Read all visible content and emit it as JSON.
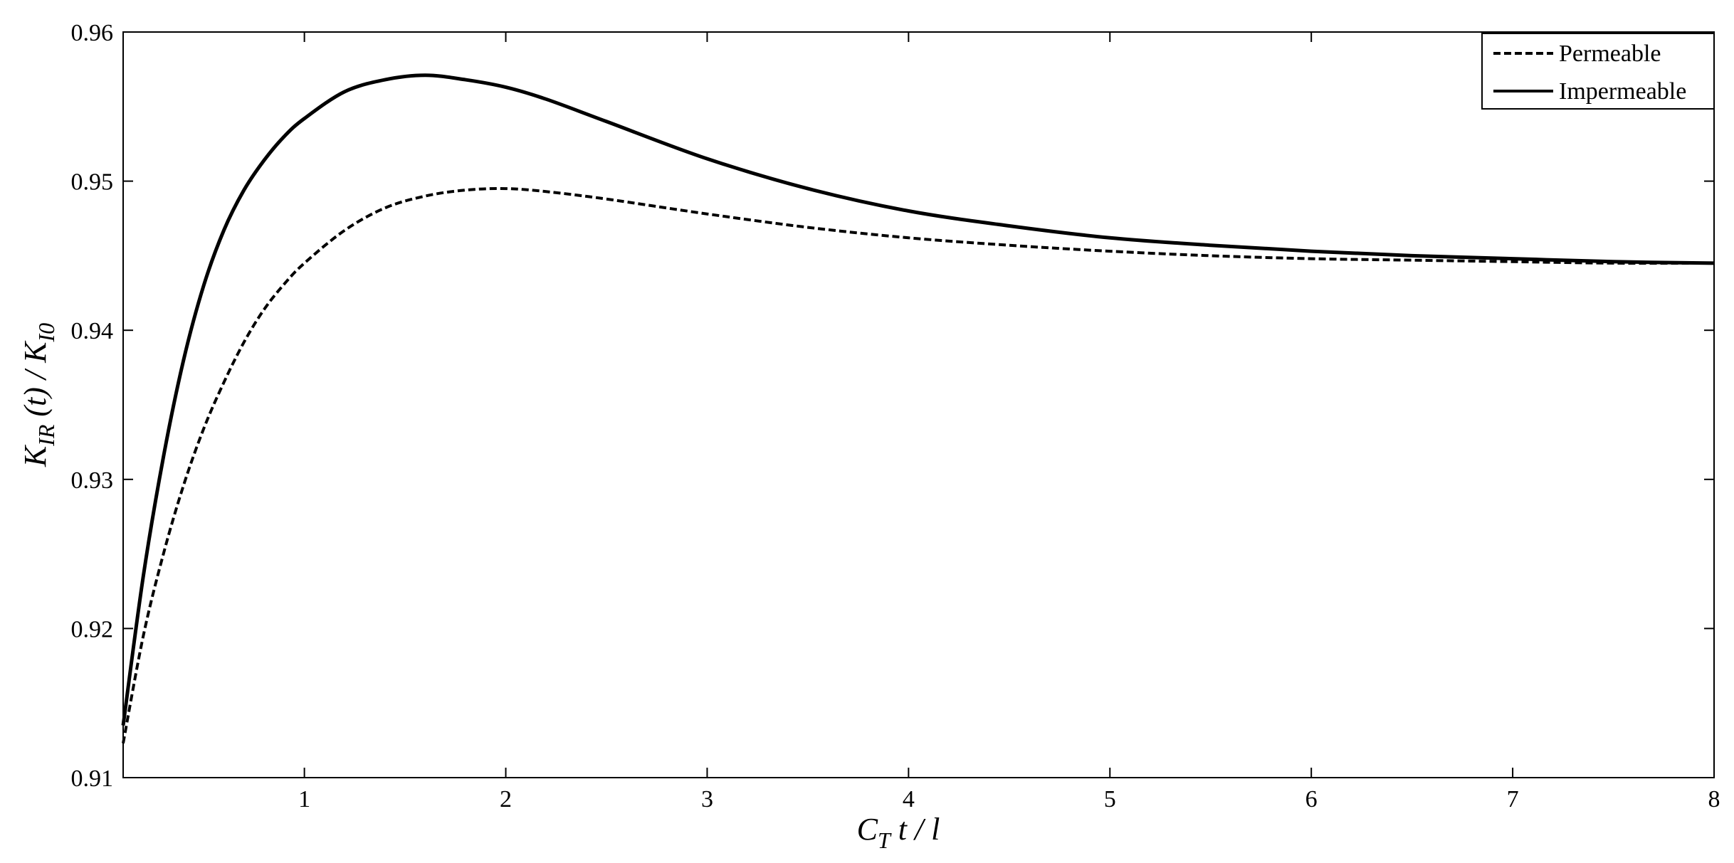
{
  "chart_data": {
    "type": "line",
    "title": "",
    "xlabel": {
      "main": "C",
      "sub": "T",
      "rest": " t / l"
    },
    "ylabel": {
      "k1": "K",
      "k1_sub": "IR",
      "mid": " (t) / ",
      "k2": "K",
      "k2_sub": "I0"
    },
    "xlim": [
      0.1,
      8
    ],
    "ylim": [
      0.91,
      0.96
    ],
    "xticks": [
      1,
      2,
      3,
      4,
      5,
      6,
      7,
      8
    ],
    "xtick_labels": [
      "1",
      "2",
      "3",
      "4",
      "5",
      "6",
      "7",
      "8"
    ],
    "yticks": [
      0.91,
      0.92,
      0.93,
      0.94,
      0.95,
      0.96
    ],
    "ytick_labels": [
      "0.91",
      "0.92",
      "0.93",
      "0.94",
      "0.95",
      "0.96"
    ],
    "grid": false,
    "legend_position": "top-right",
    "colors": {
      "line": "#000000",
      "axis": "#000000"
    },
    "series": [
      {
        "name": "Permeable",
        "style": "dashed",
        "x": [
          0.1,
          0.2,
          0.3,
          0.4,
          0.5,
          0.6,
          0.7,
          0.8,
          0.9,
          1.0,
          1.2,
          1.4,
          1.6,
          1.8,
          2.0,
          2.2,
          2.5,
          3.0,
          3.5,
          4.0,
          4.5,
          5.0,
          5.5,
          6.0,
          6.5,
          7.0,
          7.5,
          8.0
        ],
        "y": [
          0.9123,
          0.9195,
          0.925,
          0.9296,
          0.9334,
          0.9365,
          0.9392,
          0.9414,
          0.9431,
          0.9445,
          0.9467,
          0.9482,
          0.949,
          0.9494,
          0.9495,
          0.9493,
          0.9488,
          0.9478,
          0.9469,
          0.9462,
          0.9457,
          0.9453,
          0.945,
          0.9448,
          0.9447,
          0.9446,
          0.9445,
          0.9445
        ]
      },
      {
        "name": "Impermeable",
        "style": "solid",
        "x": [
          0.1,
          0.2,
          0.3,
          0.4,
          0.5,
          0.6,
          0.7,
          0.8,
          0.9,
          1.0,
          1.2,
          1.4,
          1.6,
          1.8,
          2.0,
          2.2,
          2.5,
          3.0,
          3.5,
          4.0,
          4.5,
          5.0,
          5.5,
          6.0,
          6.5,
          7.0,
          7.5,
          8.0
        ],
        "y": [
          0.9135,
          0.9235,
          0.9315,
          0.938,
          0.943,
          0.9467,
          0.9494,
          0.9514,
          0.953,
          0.9542,
          0.956,
          0.9568,
          0.9571,
          0.9568,
          0.9563,
          0.9555,
          0.954,
          0.9515,
          0.9495,
          0.948,
          0.947,
          0.9462,
          0.9457,
          0.9453,
          0.945,
          0.9448,
          0.9446,
          0.9445
        ]
      }
    ]
  }
}
